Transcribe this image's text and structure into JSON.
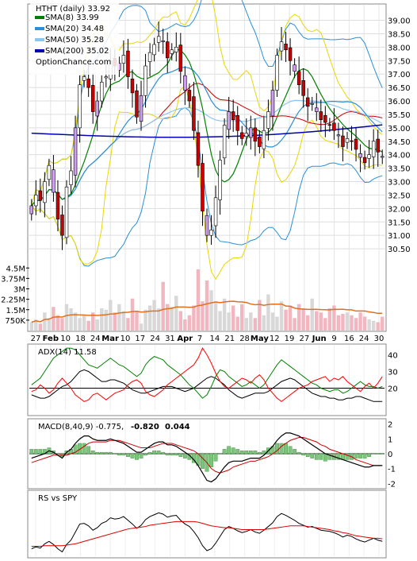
{
  "chart_data": [
    {
      "type": "candlestick",
      "title": "HTHT (daily) 33.92",
      "source": "OptionChance.com",
      "legend": [
        {
          "label": "SMA(8) 33.99",
          "color": "#008000"
        },
        {
          "label": "SMA(20) 34.48",
          "color": "#2a8fd6"
        },
        {
          "label": "SMA(50) 35.28",
          "color": "#8cc6ee"
        },
        {
          "label": "SMA(200) 35.02",
          "color": "#0000b0"
        }
      ],
      "ylim": [
        30.0,
        39.4
      ],
      "y_ticks": [
        "39.00",
        "38.50",
        "38.00",
        "37.50",
        "37.00",
        "36.50",
        "36.00",
        "35.50",
        "35.00",
        "34.50",
        "34.00",
        "33.50",
        "33.00",
        "32.50",
        "32.00",
        "31.50",
        "31.00",
        "30.50"
      ],
      "x_ticks": [
        "27",
        "Feb",
        "10",
        "18",
        "24",
        "Mar",
        "10",
        "17",
        "24",
        "31",
        "Apr",
        "7",
        "14",
        "21",
        "28",
        "May",
        "12",
        "19",
        "27",
        "Jun",
        "9",
        "16",
        "24",
        "30"
      ],
      "close": [
        32.1,
        32.5,
        32.3,
        33.0,
        33.6,
        32.6,
        31.6,
        31.0,
        32.8,
        33.4,
        35.0,
        36.6,
        36.9,
        36.5,
        35.6,
        36.0,
        36.7,
        36.9,
        37.5,
        37.3,
        37.4,
        37.7,
        36.9,
        36.3,
        35.4,
        36.2,
        37.3,
        37.8,
        38.1,
        38.4,
        38.2,
        37.6,
        37.9,
        38.0,
        37.1,
        36.4,
        36.0,
        34.9,
        33.6,
        31.9,
        31.0,
        31.2,
        32.4,
        33.8,
        35.1,
        35.6,
        35.3,
        34.9,
        34.6,
        34.8,
        35.0,
        34.5,
        34.3,
        34.9,
        35.6,
        36.4,
        37.7,
        38.2,
        37.9,
        37.5,
        37.1,
        36.6,
        36.2,
        35.8,
        35.9,
        35.6,
        35.3,
        35.2,
        35.1,
        34.9,
        34.7,
        34.3,
        34.6,
        34.5,
        34.2,
        33.9,
        33.7,
        34.0,
        34.5,
        34.1,
        33.9
      ],
      "volume_axis": [
        "4.5M",
        "3.75M",
        "3M",
        "2.25M",
        "1.5M",
        "750K"
      ],
      "volume_ylim": [
        0,
        4800000
      ],
      "volume": [
        0.6,
        0.8,
        0.5,
        1.3,
        0.9,
        1.7,
        1.1,
        0.9,
        1.9,
        1.6,
        1.3,
        0.9,
        1.1,
        0.7,
        1.3,
        0.8,
        1.6,
        1.5,
        2.2,
        1.3,
        1.9,
        1.4,
        0.9,
        2.3,
        1.4,
        0.5,
        1.5,
        1.8,
        2.2,
        1.6,
        3.5,
        1.9,
        1.7,
        2.5,
        1.4,
        0.8,
        1.1,
        1.8,
        4.4,
        2.1,
        3.6,
        2.9,
        2.1,
        1.4,
        2.3,
        1.3,
        1.8,
        1.0,
        1.9,
        0.9,
        1.3,
        0.9,
        2.2,
        1.1,
        2.6,
        1.3,
        1.0,
        2.1,
        1.5,
        1.8,
        0.9,
        1.9,
        1.6,
        1.1,
        2.3,
        1.4,
        1.3,
        0.9,
        1.6,
        1.8,
        1.1,
        1.2,
        1.3,
        1.1,
        0.9,
        1.3,
        1.0,
        0.8,
        0.7,
        0.6,
        1.0
      ],
      "volume_unit": "M"
    },
    {
      "type": "line",
      "label": "ADX(14) 11.58",
      "ylim": [
        5,
        45
      ],
      "y_ticks": [
        "40",
        "30",
        "20"
      ],
      "reference": 20,
      "series": [
        {
          "color": "#000000",
          "values": [
            16,
            15,
            14,
            14,
            15,
            17,
            19,
            21,
            22,
            24,
            27,
            30,
            31,
            30,
            28,
            26,
            24,
            24,
            25,
            25,
            24,
            23,
            21,
            19,
            18,
            17,
            17,
            18,
            19,
            20,
            21,
            21,
            21,
            20,
            19,
            18,
            19,
            20,
            22,
            24,
            26,
            27,
            26,
            24,
            22,
            19,
            17,
            15,
            14,
            15,
            16,
            17,
            17,
            17,
            18,
            20,
            22,
            24,
            25,
            26,
            25,
            23,
            21,
            19,
            17,
            16,
            15,
            15,
            14,
            14,
            13,
            13,
            14,
            14,
            15,
            15,
            14,
            13,
            12,
            12,
            12
          ]
        },
        {
          "color": "#008000",
          "values": [
            22,
            24,
            26,
            30,
            34,
            38,
            40,
            42,
            44,
            44,
            43,
            40,
            37,
            34,
            33,
            32,
            34,
            36,
            38,
            36,
            34,
            33,
            31,
            29,
            27,
            29,
            34,
            37,
            39,
            38,
            37,
            34,
            32,
            30,
            28,
            25,
            22,
            20,
            17,
            14,
            16,
            21,
            27,
            31,
            30,
            27,
            25,
            23,
            21,
            22,
            24,
            22,
            20,
            22,
            26,
            30,
            34,
            37,
            35,
            33,
            31,
            29,
            27,
            25,
            23,
            22,
            20,
            19,
            18,
            19,
            19,
            17,
            18,
            20,
            22,
            24,
            22,
            21,
            21,
            20,
            21
          ]
        },
        {
          "color": "#ff0000",
          "values": [
            18,
            19,
            22,
            20,
            17,
            19,
            23,
            26,
            23,
            20,
            16,
            14,
            12,
            13,
            16,
            17,
            15,
            13,
            15,
            17,
            18,
            19,
            22,
            24,
            25,
            23,
            18,
            16,
            15,
            17,
            19,
            22,
            24,
            26,
            28,
            30,
            32,
            34,
            38,
            44,
            40,
            35,
            29,
            24,
            21,
            20,
            22,
            24,
            26,
            25,
            23,
            26,
            28,
            25,
            20,
            17,
            14,
            12,
            14,
            16,
            18,
            20,
            21,
            22,
            24,
            25,
            26,
            27,
            24,
            26,
            25,
            27,
            24,
            22,
            20,
            18,
            21,
            23,
            20,
            23,
            27
          ]
        }
      ]
    },
    {
      "type": "line",
      "label": "MACD(8,40,9) -0.775,",
      "values_text": [
        {
          "text": "-0.820",
          "color": "#dd0000"
        },
        {
          "text": "0.044",
          "color": "#1a3fb0"
        }
      ],
      "ylim": [
        -2.2,
        2.2
      ],
      "y_ticks": [
        "2",
        "1",
        "0",
        "-1",
        "-2"
      ],
      "macd": [
        -0.3,
        -0.2,
        -0.1,
        0.0,
        0.2,
        0.1,
        -0.1,
        -0.3,
        0.1,
        0.3,
        0.7,
        1.0,
        1.2,
        1.2,
        1.0,
        0.9,
        0.9,
        0.9,
        1.0,
        0.9,
        0.8,
        0.7,
        0.5,
        0.3,
        0.1,
        0.1,
        0.3,
        0.5,
        0.7,
        0.8,
        0.8,
        0.6,
        0.6,
        0.5,
        0.3,
        0.1,
        -0.1,
        -0.4,
        -0.8,
        -1.3,
        -1.8,
        -1.9,
        -1.7,
        -1.3,
        -0.9,
        -0.6,
        -0.5,
        -0.5,
        -0.5,
        -0.4,
        -0.3,
        -0.3,
        -0.3,
        -0.1,
        0.2,
        0.5,
        0.9,
        1.2,
        1.4,
        1.4,
        1.3,
        1.2,
        1.0,
        0.8,
        0.6,
        0.4,
        0.2,
        0.0,
        -0.1,
        -0.2,
        -0.3,
        -0.4,
        -0.5,
        -0.6,
        -0.7,
        -0.8,
        -0.9,
        -0.9,
        -0.8,
        -0.8,
        -0.8
      ],
      "signal": [
        -0.6,
        -0.5,
        -0.4,
        -0.3,
        -0.2,
        -0.1,
        -0.1,
        -0.1,
        -0.1,
        0.0,
        0.1,
        0.3,
        0.5,
        0.7,
        0.8,
        0.8,
        0.8,
        0.8,
        0.9,
        0.9,
        0.9,
        0.8,
        0.7,
        0.6,
        0.5,
        0.4,
        0.4,
        0.4,
        0.5,
        0.6,
        0.7,
        0.7,
        0.7,
        0.6,
        0.5,
        0.4,
        0.3,
        0.2,
        0.0,
        -0.3,
        -0.6,
        -1.0,
        -1.2,
        -1.3,
        -1.2,
        -1.1,
        -0.9,
        -0.8,
        -0.7,
        -0.6,
        -0.5,
        -0.5,
        -0.4,
        -0.3,
        -0.2,
        0.0,
        0.2,
        0.5,
        0.7,
        0.9,
        1.0,
        1.1,
        1.1,
        1.0,
        0.9,
        0.8,
        0.6,
        0.5,
        0.3,
        0.2,
        0.1,
        0.0,
        -0.1,
        -0.2,
        -0.4,
        -0.5,
        -0.6,
        -0.7,
        -0.8,
        -0.8,
        -0.8
      ],
      "histogram": [
        0.3,
        0.3,
        0.3,
        0.3,
        0.4,
        0.2,
        0.0,
        -0.2,
        0.2,
        0.3,
        0.6,
        0.7,
        0.7,
        0.5,
        0.2,
        0.1,
        0.1,
        0.1,
        0.1,
        0.0,
        -0.1,
        -0.1,
        -0.2,
        -0.3,
        -0.4,
        -0.3,
        -0.1,
        0.1,
        0.2,
        0.2,
        0.1,
        -0.1,
        -0.1,
        -0.1,
        -0.2,
        -0.3,
        -0.4,
        -0.6,
        -0.8,
        -1.0,
        -1.2,
        -0.9,
        -0.5,
        0.0,
        0.3,
        0.5,
        0.4,
        0.3,
        0.2,
        0.2,
        0.2,
        0.2,
        0.1,
        0.2,
        0.4,
        0.5,
        0.7,
        0.7,
        0.7,
        0.5,
        0.3,
        0.1,
        -0.1,
        -0.2,
        -0.3,
        -0.4,
        -0.4,
        -0.5,
        -0.4,
        -0.4,
        -0.4,
        -0.4,
        -0.4,
        -0.4,
        -0.3,
        -0.3,
        -0.3,
        -0.2,
        0.0,
        0.0,
        0.0
      ]
    },
    {
      "type": "line",
      "label": "RS vs SPY",
      "ylim": [
        0,
        10
      ],
      "series": [
        {
          "color": "#000000",
          "values": [
            1.2,
            1.5,
            1.3,
            2.0,
            2.4,
            1.9,
            1.2,
            0.7,
            1.9,
            2.6,
            3.9,
            5.2,
            5.3,
            4.9,
            4.2,
            4.6,
            5.3,
            5.6,
            6.2,
            6.0,
            6.1,
            6.4,
            5.8,
            5.2,
            4.5,
            5.0,
            5.9,
            6.4,
            6.7,
            7.0,
            6.8,
            6.3,
            6.5,
            6.6,
            5.8,
            5.2,
            4.8,
            4.0,
            3.0,
            1.7,
            0.9,
            1.2,
            2.1,
            3.2,
            4.3,
            4.8,
            4.5,
            4.1,
            3.8,
            4.0,
            4.3,
            3.9,
            3.7,
            4.2,
            4.8,
            5.4,
            6.4,
            6.9,
            6.6,
            6.2,
            5.8,
            5.3,
            5.0,
            4.7,
            4.8,
            4.5,
            4.2,
            4.1,
            4.0,
            3.8,
            3.5,
            3.1,
            3.4,
            3.2,
            2.8,
            2.5,
            2.3,
            2.6,
            2.9,
            2.6,
            2.4
          ]
        },
        {
          "color": "#dd0000",
          "values": [
            1.6,
            1.6,
            1.6,
            1.7,
            1.7,
            1.7,
            1.7,
            1.7,
            1.8,
            1.9,
            2.0,
            2.2,
            2.4,
            2.6,
            2.8,
            3.0,
            3.2,
            3.4,
            3.6,
            3.8,
            4.0,
            4.2,
            4.4,
            4.5,
            4.6,
            4.7,
            4.8,
            5.0,
            5.1,
            5.2,
            5.3,
            5.4,
            5.5,
            5.6,
            5.6,
            5.6,
            5.6,
            5.6,
            5.5,
            5.3,
            5.1,
            4.9,
            4.8,
            4.7,
            4.6,
            4.6,
            4.5,
            4.4,
            4.3,
            4.3,
            4.3,
            4.3,
            4.3,
            4.3,
            4.4,
            4.5,
            4.6,
            4.7,
            4.8,
            4.9,
            4.9,
            4.9,
            4.9,
            4.8,
            4.7,
            4.6,
            4.5,
            4.4,
            4.3,
            4.1,
            4.0,
            3.8,
            3.7,
            3.5,
            3.3,
            3.2,
            3.1,
            3.0,
            2.9,
            2.9,
            2.8
          ]
        }
      ]
    }
  ]
}
